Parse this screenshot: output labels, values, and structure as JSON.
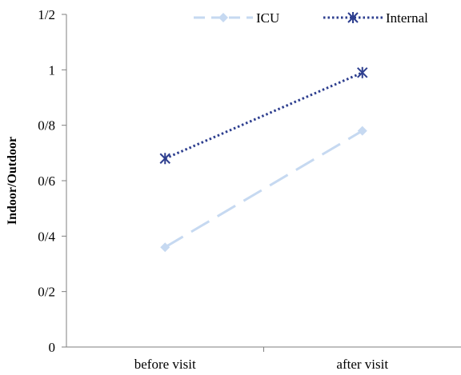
{
  "chart_data": {
    "type": "line",
    "categories": [
      "before visit",
      "after visit"
    ],
    "series": [
      {
        "name": "ICU",
        "values": [
          0.36,
          0.78
        ],
        "color": "#c6d9f1",
        "line_style": "long-dash",
        "marker": "diamond"
      },
      {
        "name": "Internal",
        "values": [
          0.68,
          0.99
        ],
        "color": "#2e3f8f",
        "line_style": "dotted",
        "marker": "asterisk"
      }
    ],
    "yticks": [
      {
        "value": 0,
        "label": "0"
      },
      {
        "value": 0.2,
        "label": "0/2"
      },
      {
        "value": 0.4,
        "label": "0/4"
      },
      {
        "value": 0.6,
        "label": "0/6"
      },
      {
        "value": 0.8,
        "label": "0/8"
      },
      {
        "value": 1.0,
        "label": "1"
      },
      {
        "value": 1.2,
        "label": "1/2"
      }
    ],
    "ylabel": "Indoor/Outdoor",
    "ylim": [
      0,
      1.2
    ],
    "legend_position": "top-right",
    "grid": false
  }
}
